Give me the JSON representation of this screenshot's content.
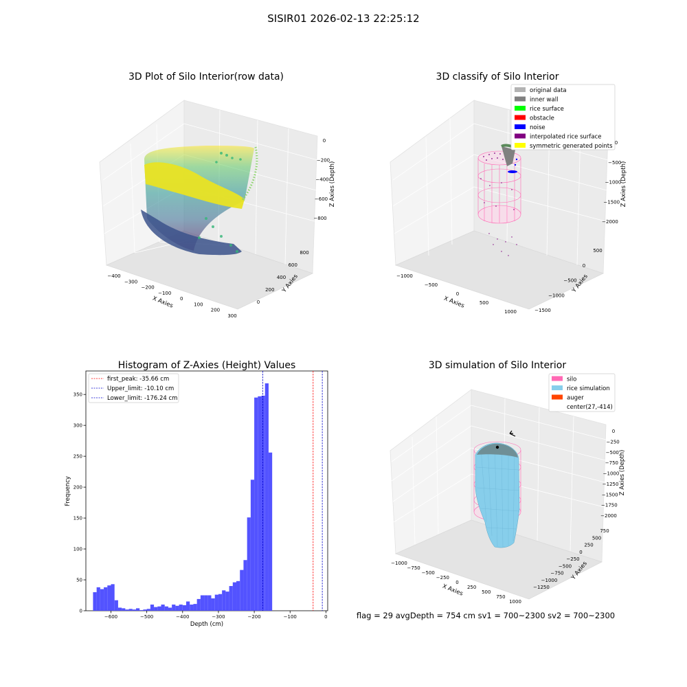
{
  "suptitle": "SISIR01 2026-02-13 22:25:12",
  "footer": "flag = 29   avgDepth = 754 cm  sv1 = 700~2300  sv2 = 700~2300",
  "colors": {
    "hist_bar": "#5050ff",
    "first_peak": "#ff0000",
    "limits": "#0000cc",
    "silo": "#ff69b4",
    "rice_simulation": "#87ceeb",
    "auger": "#ff4500",
    "original_data": "#b3b3b3",
    "inner_wall": "#808080",
    "rice_surface": "#00ff00",
    "obstacle": "#ff0000",
    "noise": "#0000ff",
    "interpolated_rice_surface": "#800080",
    "symmetric_generated_points": "#ffff00"
  },
  "chart_data": [
    {
      "type": "scatter",
      "dimension": "3d",
      "title": "3D Plot of Silo Interior(row data)",
      "xlabel": "X Axies",
      "ylabel": "Y Axies",
      "zlabel": "Z Axies (Depth)",
      "x_ticks": [
        "−400",
        "−300",
        "−200",
        "−100",
        "0",
        "100",
        "200",
        "300"
      ],
      "y_ticks": [
        "0",
        "200",
        "400",
        "600",
        "800"
      ],
      "z_ticks": [
        "0",
        "−200",
        "−400",
        "−600",
        "−800"
      ],
      "xlim": [
        -450,
        300
      ],
      "ylim": [
        -100,
        950
      ],
      "zlim": [
        -900,
        0
      ],
      "colormap": "viridis"
    },
    {
      "type": "scatter",
      "dimension": "3d",
      "title": "3D classify of Silo Interior",
      "xlabel": "X Axies",
      "ylabel": "Y Axies",
      "zlabel": "Z Axies (Depth)",
      "x_ticks": [
        "−1000",
        "−500",
        "0",
        "500",
        "1000"
      ],
      "y_ticks": [
        "−1500",
        "−1000",
        "−500",
        "0",
        "500"
      ],
      "z_ticks": [
        "0",
        "−500",
        "−1000",
        "−1500",
        "−2000"
      ],
      "legend_position": "top-right",
      "legend": [
        "original data",
        "inner wall",
        "rice surface",
        "obstacle",
        "noise",
        "interpolated rice surface",
        "symmetric generated points"
      ]
    },
    {
      "type": "bar",
      "title": "Histogram of Z-Axies (Height) Values",
      "xlabel": "Depth (cm)",
      "ylabel": "Frequency",
      "xlim": [
        -670,
        5
      ],
      "ylim": [
        0,
        388
      ],
      "x_ticks": [
        -600,
        -500,
        -400,
        -300,
        -200,
        -100,
        0
      ],
      "x_tick_labels": [
        "−600",
        "−500",
        "−400",
        "−300",
        "−200",
        "−100",
        "0"
      ],
      "y_ticks": [
        0,
        50,
        100,
        150,
        200,
        250,
        300,
        350
      ],
      "bin_start": -650,
      "bin_width": 10,
      "values": [
        30,
        38,
        35,
        38,
        41,
        43,
        17,
        5,
        4,
        2,
        3,
        2,
        4,
        1,
        2,
        3,
        10,
        6,
        7,
        10,
        7,
        5,
        10,
        8,
        10,
        9,
        15,
        10,
        11,
        19,
        25,
        25,
        25,
        20,
        26,
        27,
        33,
        31,
        40,
        46,
        48,
        66,
        82,
        151,
        212,
        345,
        347,
        348,
        368,
        256
      ],
      "lines": [
        {
          "label": "first_peak: -35.66 cm",
          "x": -35.66,
          "color": "#ff0000"
        },
        {
          "label": "Upper_limit: -10.10 cm",
          "x": -10.1,
          "color": "#0000cc"
        },
        {
          "label": "Lower_limit: -176.24 cm",
          "x": -176.24,
          "color": "#0000cc"
        }
      ],
      "legend_position": "top-left"
    },
    {
      "type": "area",
      "dimension": "3d",
      "title": "3D simulation of Silo Interior",
      "xlabel": "X Axies",
      "ylabel": "Y Axies",
      "zlabel": "Z Axies (Depth)",
      "x_ticks": [
        "−1000",
        "−750",
        "−500",
        "−250",
        "0",
        "250",
        "500",
        "750",
        "1000"
      ],
      "y_ticks": [
        "−1250",
        "−1000",
        "−750",
        "−500",
        "−250",
        "0",
        "250",
        "500",
        "750"
      ],
      "z_ticks": [
        "0",
        "−250",
        "−500",
        "−750",
        "−1000",
        "−1250",
        "−1500",
        "−1750",
        "−2000"
      ],
      "legend_position": "top-right",
      "legend": [
        "silo",
        "rice simulation",
        "auger",
        "center(27,-414)"
      ]
    }
  ]
}
